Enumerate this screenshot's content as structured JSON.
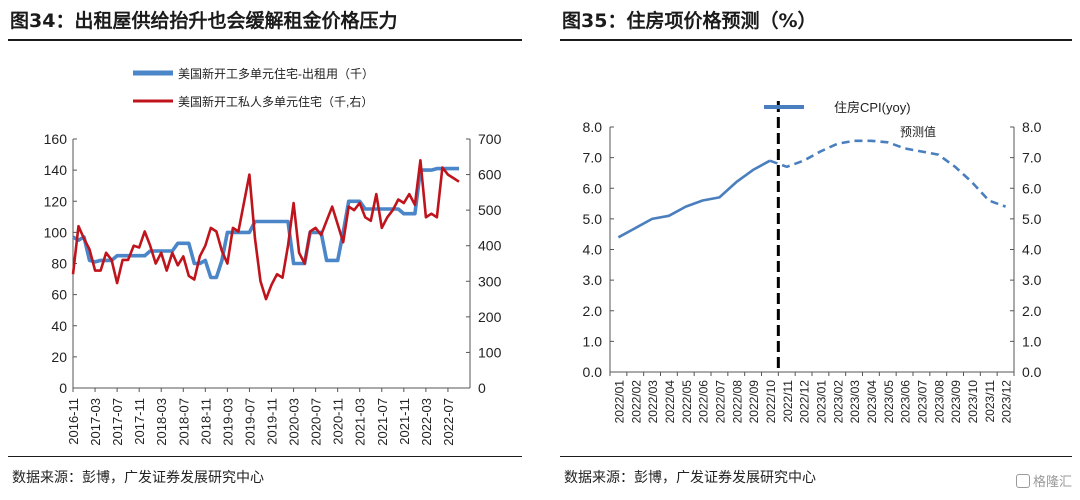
{
  "left": {
    "title": "图34：出租屋供给抬升也会缓解租金价格压力",
    "source": "数据来源：彭博，广发证券发展研究中心",
    "chart_data": {
      "type": "line",
      "legend": {
        "position": "top-left"
      },
      "x_ticks": [
        "2016-11",
        "2017-03",
        "2017-07",
        "2017-11",
        "2018-03",
        "2018-07",
        "2018-11",
        "2019-03",
        "2019-07",
        "2019-11",
        "2020-03",
        "2020-07",
        "2020-11",
        "2021-03",
        "2021-07",
        "2021-11",
        "2022-03",
        "2022-07"
      ],
      "x_range": [
        0,
        72
      ],
      "y_left": {
        "min": 0,
        "max": 160,
        "ticks": [
          0,
          20,
          40,
          60,
          80,
          100,
          120,
          140,
          160
        ]
      },
      "y_right": {
        "min": 0,
        "max": 700,
        "ticks": [
          0,
          100,
          200,
          300,
          400,
          500,
          600,
          700
        ]
      },
      "series": [
        {
          "name": "美国新开工多单元住宅-出租用（千）",
          "color": "#4a86c8",
          "axis": "left",
          "x": [
            0,
            1,
            2,
            3,
            4,
            5,
            6,
            7,
            8,
            9,
            10,
            11,
            12,
            13,
            14,
            15,
            16,
            17,
            18,
            19,
            20,
            21,
            22,
            23,
            24,
            25,
            26,
            27,
            28,
            29,
            30,
            31,
            32,
            33,
            34,
            35,
            36,
            37,
            38,
            39,
            40,
            41,
            42,
            43,
            44,
            45,
            46,
            47,
            48,
            49,
            50,
            51,
            52,
            53,
            54,
            55,
            56,
            57,
            58,
            59,
            60,
            61,
            62,
            63,
            64,
            65,
            66,
            67,
            68,
            69,
            70
          ],
          "values": [
            97,
            95,
            97,
            82,
            81,
            82,
            82,
            82,
            85,
            85,
            85,
            85,
            85,
            85,
            88,
            88,
            88,
            88,
            88,
            93,
            93,
            93,
            80,
            80,
            82,
            71,
            71,
            82,
            100,
            100,
            100,
            100,
            100,
            107,
            107,
            107,
            107,
            107,
            107,
            107,
            80,
            80,
            80,
            100,
            100,
            100,
            82,
            82,
            82,
            100,
            120,
            120,
            120,
            115,
            115,
            115,
            115,
            115,
            115,
            115,
            112,
            112,
            112,
            140,
            140,
            140,
            141,
            141,
            141,
            141,
            141
          ]
        },
        {
          "name": "美国新开工私人多单元住宅（千,右）",
          "color": "#c0141c",
          "axis": "right",
          "x": [
            0,
            1,
            2,
            3,
            4,
            5,
            6,
            7,
            8,
            9,
            10,
            11,
            12,
            13,
            14,
            15,
            16,
            17,
            18,
            19,
            20,
            21,
            22,
            23,
            24,
            25,
            26,
            27,
            28,
            29,
            30,
            31,
            32,
            33,
            34,
            35,
            36,
            37,
            38,
            39,
            40,
            41,
            42,
            43,
            44,
            45,
            46,
            47,
            48,
            49,
            50,
            51,
            52,
            53,
            54,
            55,
            56,
            57,
            58,
            59,
            60,
            61,
            62,
            63,
            64,
            65,
            66,
            67,
            68,
            69,
            70
          ],
          "values": [
            320,
            455,
            420,
            390,
            330,
            330,
            380,
            360,
            295,
            360,
            360,
            400,
            395,
            440,
            400,
            350,
            380,
            330,
            380,
            345,
            370,
            315,
            305,
            370,
            400,
            450,
            440,
            385,
            350,
            450,
            440,
            520,
            600,
            420,
            300,
            250,
            290,
            320,
            310,
            400,
            520,
            380,
            350,
            440,
            450,
            430,
            470,
            510,
            460,
            410,
            510,
            500,
            520,
            480,
            470,
            545,
            450,
            480,
            500,
            530,
            520,
            545,
            515,
            640,
            480,
            490,
            480,
            620,
            600,
            590,
            580
          ]
        }
      ]
    }
  },
  "right": {
    "title": "图35：住房项价格预测（%）",
    "source": "数据来源：彭博，广发证券发展研究中心",
    "watermark": "格隆汇",
    "chart_data": {
      "type": "line",
      "legend": {
        "position": "top-center"
      },
      "categories": [
        "2022/01",
        "2022/02",
        "2022/03",
        "2022/04",
        "2022/05",
        "2022/06",
        "2022/07",
        "2022/08",
        "2022/09",
        "2022/10",
        "2022/11",
        "2022/12",
        "2023/01",
        "2023/02",
        "2023/03",
        "2023/04",
        "2023/05",
        "2023/06",
        "2023/07",
        "2023/08",
        "2023/09",
        "2023/10",
        "2023/11",
        "2023/12"
      ],
      "y_left": {
        "min": 0,
        "max": 8,
        "ticks": [
          "0.0",
          "1.0",
          "2.0",
          "3.0",
          "4.0",
          "5.0",
          "6.0",
          "7.0",
          "8.0"
        ]
      },
      "y_right": {
        "min": 0,
        "max": 8,
        "ticks": [
          "0.0",
          "1.0",
          "2.0",
          "3.0",
          "4.0",
          "5.0",
          "6.0",
          "7.0",
          "8.0"
        ]
      },
      "divider_after": "2022/10",
      "annotation": "预测值",
      "series": [
        {
          "name": "住房CPI(yoy)",
          "color": "#4a7fbf",
          "actual": [
            4.4,
            4.7,
            5.0,
            5.1,
            5.4,
            5.6,
            5.7,
            6.2,
            6.6,
            6.9
          ],
          "forecast": [
            6.9,
            6.7,
            6.9,
            7.2,
            7.45,
            7.55,
            7.55,
            7.5,
            7.3,
            7.2,
            7.1,
            6.7,
            6.2,
            5.6,
            5.4
          ]
        }
      ]
    }
  }
}
